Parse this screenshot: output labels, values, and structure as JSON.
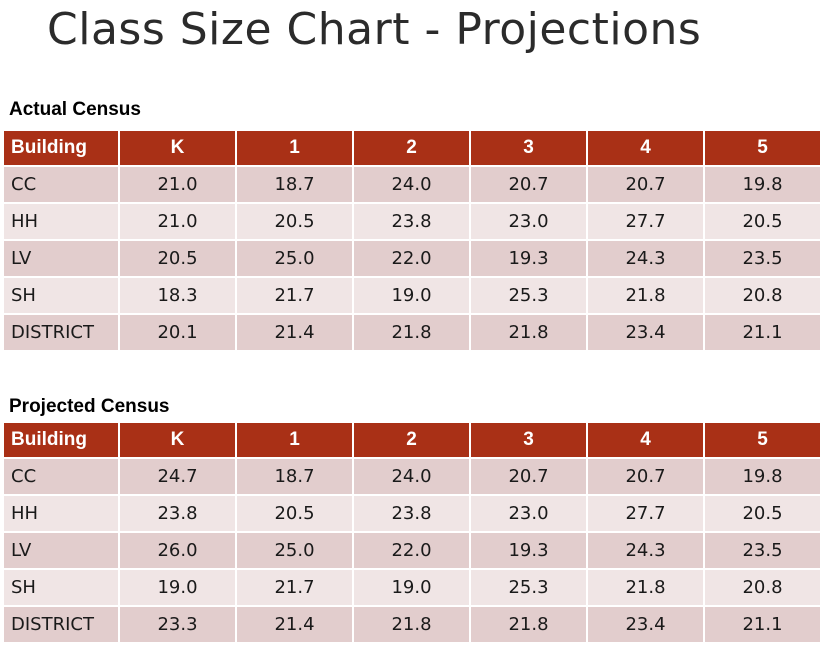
{
  "page": {
    "title": "Class Size Chart - Projections"
  },
  "columns": [
    "Building",
    "K",
    "1",
    "2",
    "3",
    "4",
    "5"
  ],
  "actual": {
    "heading": "Actual Census",
    "rows": [
      [
        "CC",
        "21.0",
        "18.7",
        "24.0",
        "20.7",
        "20.7",
        "19.8"
      ],
      [
        "HH",
        "21.0",
        "20.5",
        "23.8",
        "23.0",
        "27.7",
        "20.5"
      ],
      [
        "LV",
        "20.5",
        "25.0",
        "22.0",
        "19.3",
        "24.3",
        "23.5"
      ],
      [
        "SH",
        "18.3",
        "21.7",
        "19.0",
        "25.3",
        "21.8",
        "20.8"
      ],
      [
        "DISTRICT",
        "20.1",
        "21.4",
        "21.8",
        "21.8",
        "23.4",
        "21.1"
      ]
    ]
  },
  "projected": {
    "heading": "Projected Census",
    "rows": [
      [
        "CC",
        "24.7",
        "18.7",
        "24.0",
        "20.7",
        "20.7",
        "19.8"
      ],
      [
        "HH",
        "23.8",
        "20.5",
        "23.8",
        "23.0",
        "27.7",
        "20.5"
      ],
      [
        "LV",
        "26.0",
        "25.0",
        "22.0",
        "19.3",
        "24.3",
        "23.5"
      ],
      [
        "SH",
        "19.0",
        "21.7",
        "19.0",
        "25.3",
        "21.8",
        "20.8"
      ],
      [
        "DISTRICT",
        "23.3",
        "21.4",
        "21.8",
        "21.8",
        "23.4",
        "21.1"
      ]
    ]
  },
  "colors": {
    "header_bg": "#a93016",
    "header_text": "#ffffff",
    "row_odd_bg": "#e2cdcd",
    "row_even_bg": "#f0e5e5"
  }
}
